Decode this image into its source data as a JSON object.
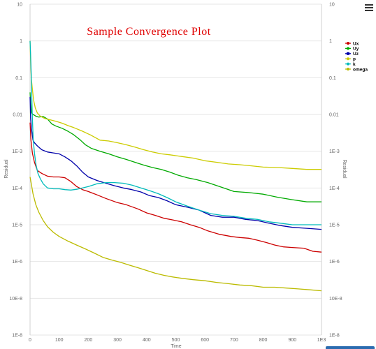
{
  "chart_data": {
    "type": "line",
    "title": "Sample Convergence Plot",
    "xlabel": "Time",
    "ylabel": "Residual",
    "ylabel_right": "Residual",
    "xlim": [
      0,
      1000
    ],
    "ylim": [
      1e-08,
      10
    ],
    "yscale": "log",
    "x_ticks": [
      {
        "v": 0,
        "label": "0"
      },
      {
        "v": 100,
        "label": "100"
      },
      {
        "v": 200,
        "label": "200"
      },
      {
        "v": 300,
        "label": "300"
      },
      {
        "v": 400,
        "label": "400"
      },
      {
        "v": 500,
        "label": "500"
      },
      {
        "v": 600,
        "label": "600"
      },
      {
        "v": 700,
        "label": "700"
      },
      {
        "v": 800,
        "label": "800"
      },
      {
        "v": 900,
        "label": "900"
      },
      {
        "v": 1000,
        "label": "1E3"
      }
    ],
    "y_ticks": [
      {
        "v": 10,
        "label": "10"
      },
      {
        "v": 1,
        "label": "1"
      },
      {
        "v": 0.1,
        "label": "0.1"
      },
      {
        "v": 0.01,
        "label": "0.01"
      },
      {
        "v": 0.001,
        "label": "1E-3"
      },
      {
        "v": 0.0001,
        "label": "1E-4"
      },
      {
        "v": 1e-05,
        "label": "1E-5"
      },
      {
        "v": 1e-06,
        "label": "1E-6"
      },
      {
        "v": 1e-07,
        "label": "10E-8"
      },
      {
        "v": 1e-08,
        "label": "1E-8"
      }
    ],
    "grid": true,
    "legend_position": "top-right",
    "series": [
      {
        "name": "Ux",
        "color": "#cc0000",
        "marker": "circle",
        "x": [
          0,
          3,
          8,
          15,
          25,
          40,
          60,
          80,
          100,
          120,
          140,
          160,
          180,
          200,
          230,
          260,
          300,
          330,
          370,
          400,
          430,
          460,
          490,
          520,
          550,
          580,
          610,
          650,
          690,
          720,
          750,
          780,
          810,
          840,
          870,
          900,
          940,
          970,
          1000
        ],
        "y": [
          0.006,
          0.002,
          0.0009,
          0.0005,
          0.0003,
          0.00025,
          0.00021,
          0.0002,
          0.0002,
          0.00019,
          0.00015,
          0.00011,
          9e-05,
          8e-05,
          6.5e-05,
          5.2e-05,
          4e-05,
          3.5e-05,
          2.7e-05,
          2.1e-05,
          1.8e-05,
          1.5e-05,
          1.35e-05,
          1.2e-05,
          1e-05,
          8.5e-06,
          6.8e-06,
          5.5e-06,
          4.8e-06,
          4.5e-06,
          4.3e-06,
          3.8e-06,
          3.3e-06,
          2.8e-06,
          2.5e-06,
          2.4e-06,
          2.3e-06,
          1.9e-06,
          1.8e-06
        ]
      },
      {
        "name": "Uy",
        "color": "#00aa00",
        "marker": "circle",
        "x": [
          0,
          2,
          5,
          10,
          15,
          20,
          30,
          45,
          60,
          75,
          90,
          110,
          130,
          150,
          170,
          190,
          210,
          240,
          270,
          300,
          330,
          360,
          390,
          420,
          450,
          480,
          510,
          540,
          570,
          610,
          650,
          700,
          750,
          800,
          850,
          900,
          950,
          1000
        ],
        "y": [
          0.04,
          0.02,
          0.011,
          0.01,
          0.0095,
          0.009,
          0.0085,
          0.0088,
          0.0075,
          0.0055,
          0.0048,
          0.0042,
          0.0035,
          0.0028,
          0.0021,
          0.0015,
          0.0012,
          0.001,
          0.00085,
          0.0007,
          0.0006,
          0.0005,
          0.00042,
          0.00036,
          0.00032,
          0.00027,
          0.00022,
          0.00019,
          0.00017,
          0.00014,
          0.00011,
          8e-05,
          7.5e-05,
          6.8e-05,
          5.6e-05,
          4.8e-05,
          4.2e-05,
          4.2e-05
        ]
      },
      {
        "name": "Uz",
        "color": "#0000aa",
        "marker": "square",
        "x": [
          0,
          2,
          5,
          10,
          15,
          25,
          40,
          60,
          80,
          100,
          120,
          140,
          160,
          180,
          200,
          230,
          260,
          290,
          320,
          350,
          380,
          410,
          440,
          470,
          500,
          540,
          580,
          620,
          660,
          700,
          740,
          780,
          820,
          860,
          900,
          950,
          1000
        ],
        "y": [
          0.03,
          0.008,
          0.004,
          0.002,
          0.0017,
          0.0014,
          0.0011,
          0.00095,
          0.0009,
          0.00085,
          0.0007,
          0.00055,
          0.0004,
          0.00027,
          0.0002,
          0.00016,
          0.000135,
          0.000115,
          0.0001,
          9e-05,
          7.8e-05,
          6.2e-05,
          5.5e-05,
          4.5e-05,
          3.5e-05,
          3e-05,
          2.5e-05,
          1.8e-05,
          1.6e-05,
          1.6e-05,
          1.4e-05,
          1.3e-05,
          1.1e-05,
          9.5e-06,
          8.5e-06,
          8e-06,
          7.5e-06
        ]
      },
      {
        "name": "p",
        "color": "#cccc00",
        "marker": "circle",
        "x": [
          0,
          2,
          4,
          8,
          12,
          18,
          25,
          35,
          50,
          70,
          90,
          110,
          130,
          150,
          180,
          210,
          240,
          270,
          300,
          330,
          360,
          390,
          420,
          450,
          480,
          520,
          560,
          600,
          640,
          680,
          720,
          760,
          800,
          850,
          900,
          950,
          1000
        ],
        "y": [
          1,
          0.3,
          0.1,
          0.05,
          0.025,
          0.015,
          0.011,
          0.009,
          0.0078,
          0.0071,
          0.0065,
          0.0058,
          0.005,
          0.0044,
          0.0035,
          0.0027,
          0.002,
          0.0019,
          0.0017,
          0.0015,
          0.0013,
          0.0011,
          0.00095,
          0.00085,
          0.0008,
          0.00072,
          0.00065,
          0.00055,
          0.0005,
          0.00045,
          0.00043,
          0.0004,
          0.00037,
          0.00036,
          0.00034,
          0.00032,
          0.00032
        ]
      },
      {
        "name": "k",
        "color": "#00bbbb",
        "marker": "circle",
        "x": [
          0,
          2,
          4,
          6,
          8,
          11,
          15,
          20,
          27,
          35,
          45,
          60,
          80,
          100,
          120,
          140,
          160,
          180,
          200,
          230,
          260,
          290,
          320,
          350,
          380,
          410,
          440,
          470,
          500,
          540,
          580,
          620,
          660,
          700,
          740,
          780,
          820,
          860,
          900,
          950,
          1000
        ],
        "y": [
          1,
          0.4,
          0.12,
          0.03,
          0.008,
          0.002,
          0.0009,
          0.00045,
          0.00025,
          0.00018,
          0.00013,
          0.0001,
          9.5e-05,
          9.5e-05,
          9e-05,
          8.8e-05,
          9.2e-05,
          0.0001,
          0.00011,
          0.00013,
          0.00014,
          0.00014,
          0.000135,
          0.00012,
          0.0001,
          8.5e-05,
          7e-05,
          5.5e-05,
          4.2e-05,
          3.2e-05,
          2.5e-05,
          2e-05,
          1.8e-05,
          1.7e-05,
          1.5e-05,
          1.4e-05,
          1.2e-05,
          1.1e-05,
          1e-05,
          1e-05,
          1e-05
        ]
      },
      {
        "name": "omega",
        "color": "#bbbb00",
        "marker": "circle",
        "x": [
          0,
          5,
          10,
          20,
          30,
          45,
          60,
          80,
          100,
          130,
          160,
          190,
          220,
          250,
          280,
          310,
          340,
          370,
          400,
          430,
          460,
          490,
          520,
          560,
          600,
          640,
          680,
          720,
          760,
          800,
          840,
          880,
          920,
          960,
          1000
        ],
        "y": [
          0.0002,
          0.00012,
          7e-05,
          3.5e-05,
          2.2e-05,
          1.3e-05,
          8.8e-06,
          6.2e-06,
          4.8e-06,
          3.6e-06,
          2.8e-06,
          2.2e-06,
          1.7e-06,
          1.3e-06,
          1.1e-06,
          9.5e-07,
          8e-07,
          6.8e-07,
          5.7e-07,
          4.8e-07,
          4.2e-07,
          3.8e-07,
          3.5e-07,
          3.2e-07,
          3e-07,
          2.7e-07,
          2.5e-07,
          2.3e-07,
          2.2e-07,
          2e-07,
          2e-07,
          1.9e-07,
          1.8e-07,
          1.7e-07,
          1.6e-07
        ]
      }
    ]
  },
  "toolbar": {
    "menu_icon": "hamburger-menu-icon"
  }
}
